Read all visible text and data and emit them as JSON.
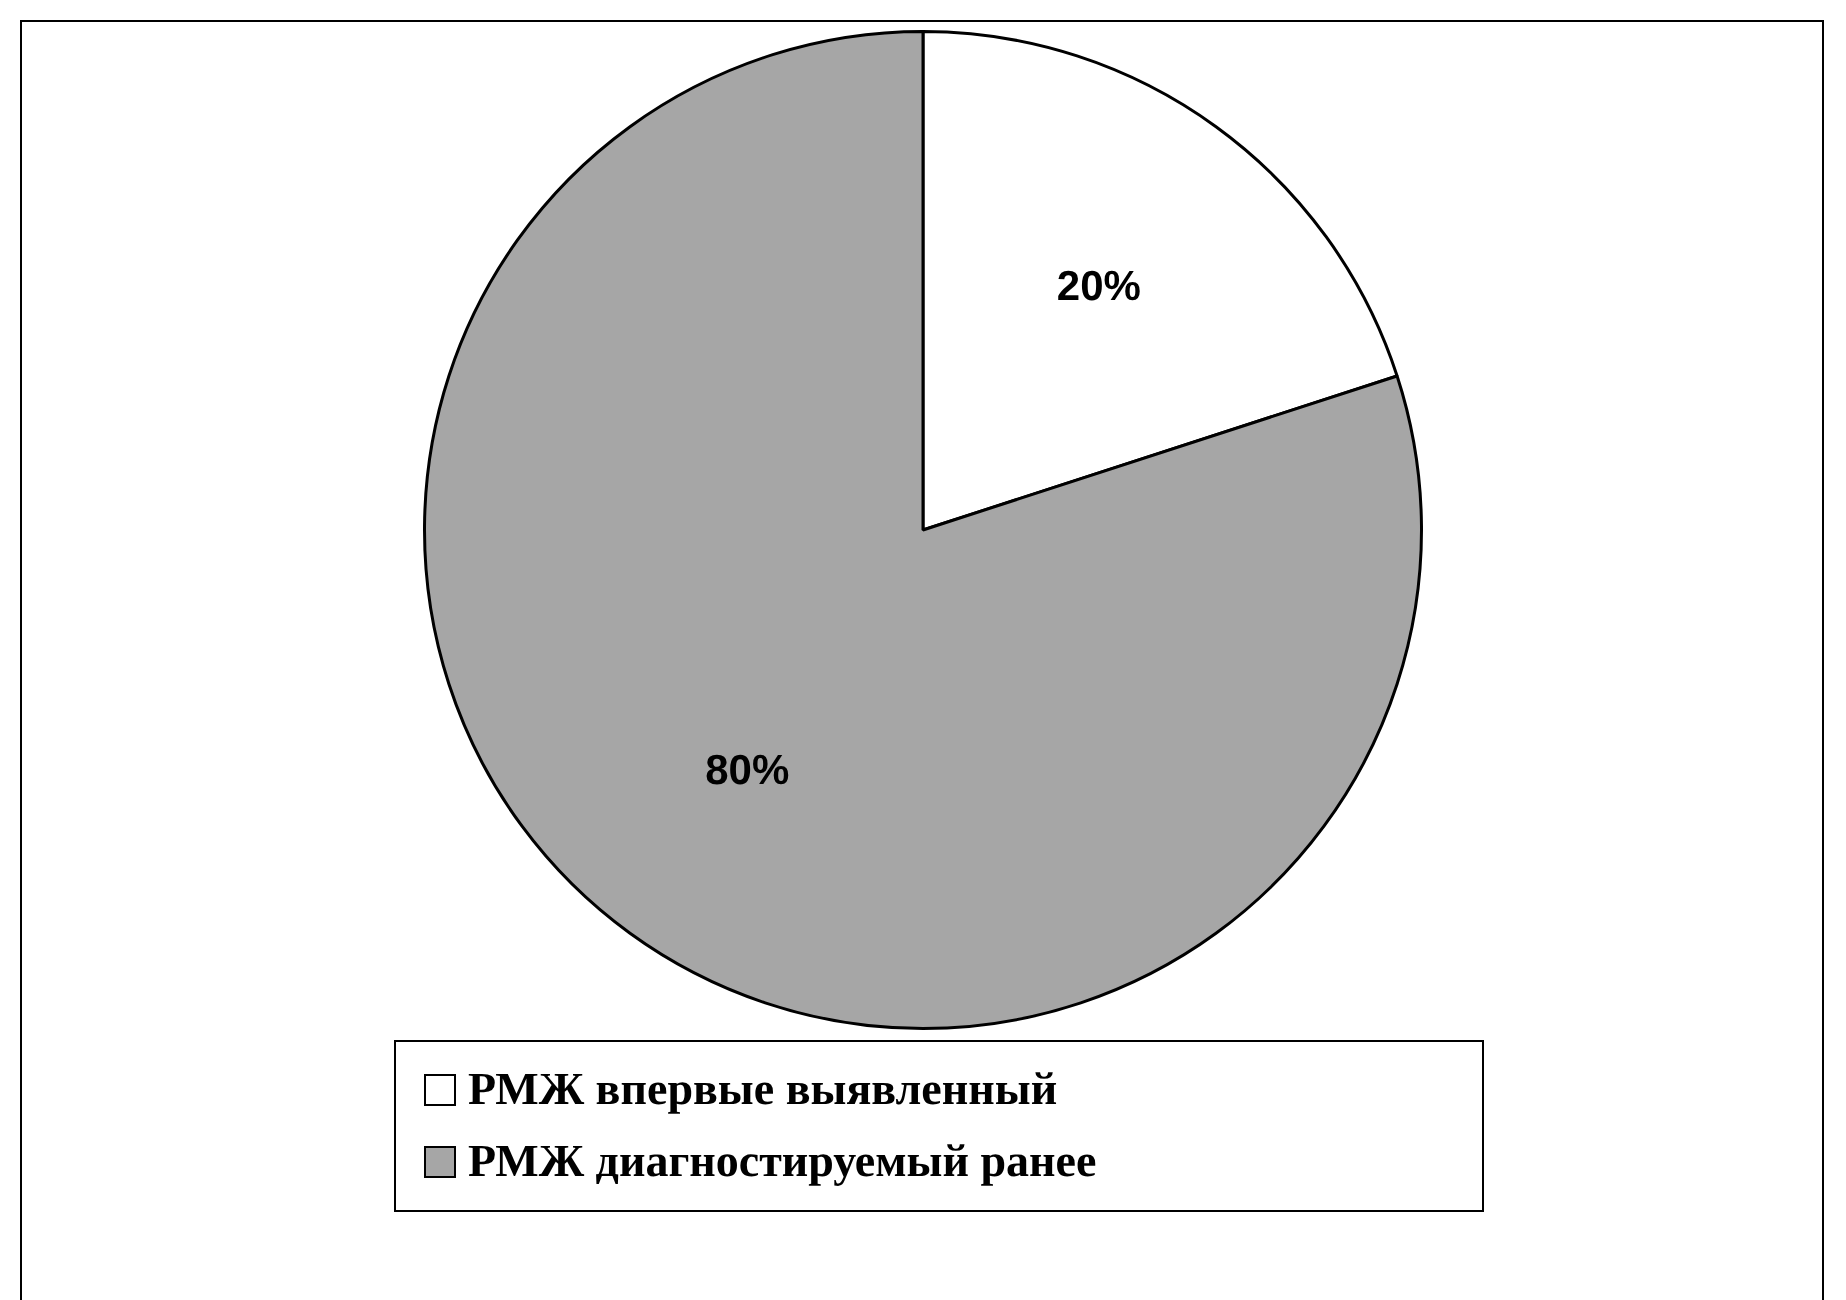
{
  "chart_data": {
    "type": "pie",
    "categories": [
      "РМЖ впервые выявленный",
      "РМЖ диагностируемый ранее"
    ],
    "values": [
      20,
      80
    ],
    "value_labels": [
      "20%",
      "80%"
    ],
    "colors": [
      "#ffffff",
      "#a6a6a6"
    ],
    "legend": "bottom"
  }
}
